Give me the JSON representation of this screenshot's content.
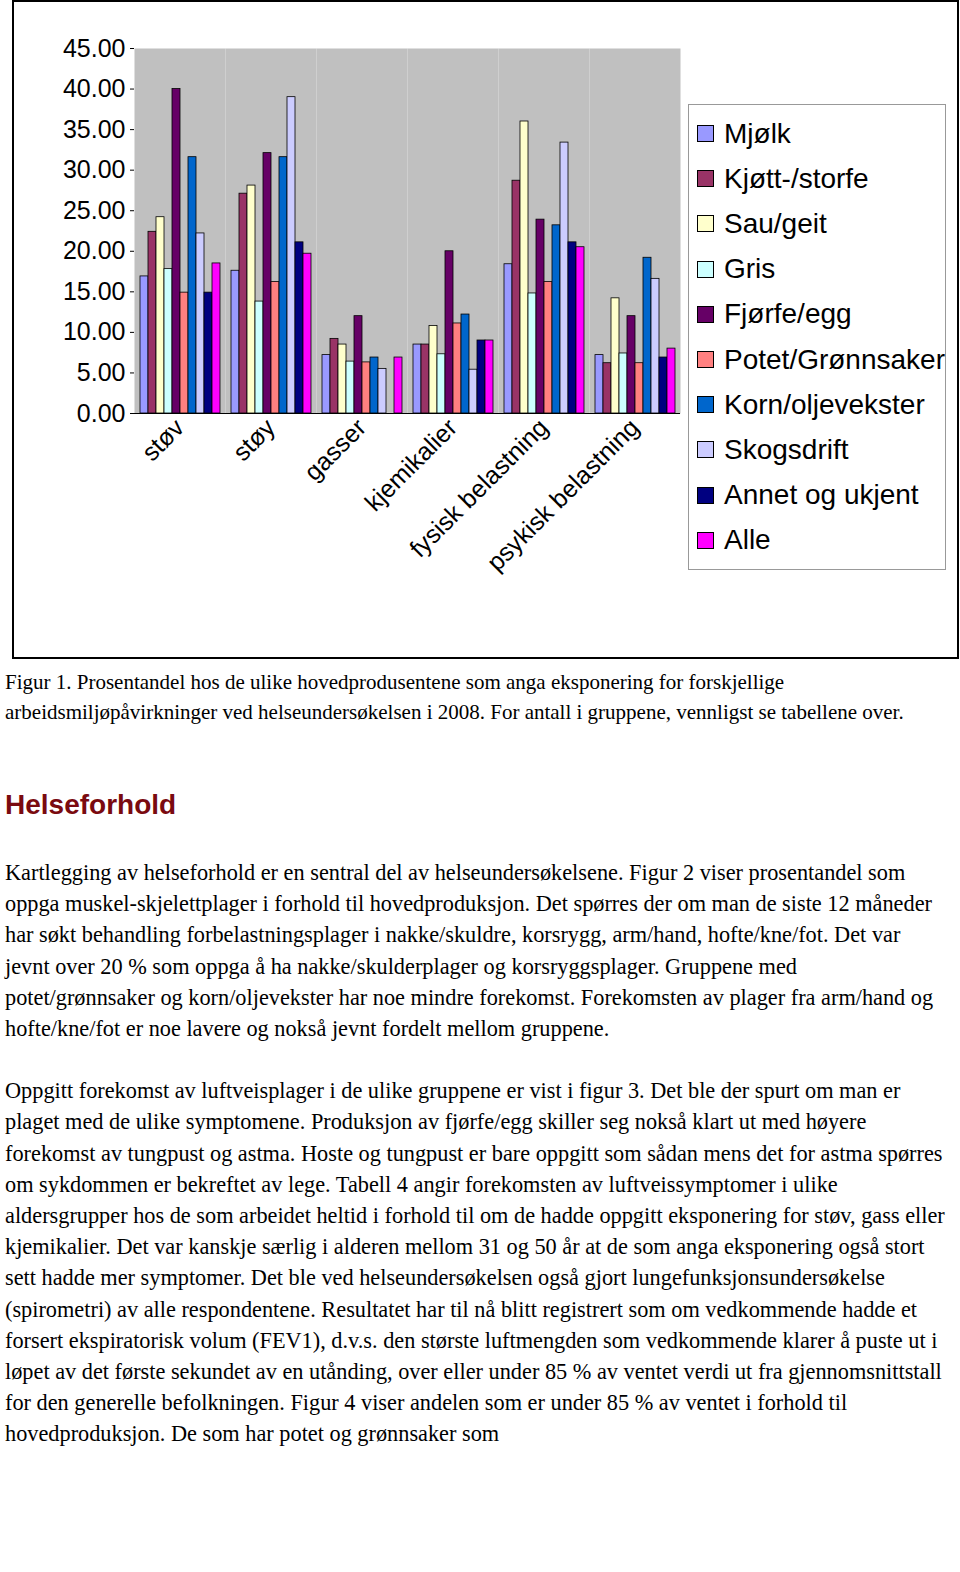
{
  "chart_data": {
    "type": "bar",
    "categories": [
      "støv",
      "støy",
      "gasser",
      "kjemikalier",
      "fysisk belastning",
      "psykisk belastning"
    ],
    "series": [
      {
        "name": "Mjølk",
        "color": "#9999ff",
        "values": [
          16.9,
          17.6,
          7.2,
          8.5,
          18.4,
          7.2
        ]
      },
      {
        "name": "Kjøtt-/storfe",
        "color": "#993366",
        "values": [
          22.4,
          27.1,
          9.2,
          8.5,
          28.7,
          6.2
        ]
      },
      {
        "name": "Sau/geit",
        "color": "#ffffcc",
        "values": [
          24.2,
          28.1,
          8.5,
          10.8,
          36.0,
          14.2
        ]
      },
      {
        "name": "Gris",
        "color": "#ccffff",
        "values": [
          17.8,
          13.8,
          6.4,
          7.3,
          14.8,
          7.4
        ]
      },
      {
        "name": "Fjørfe/egg",
        "color": "#660066",
        "values": [
          40.0,
          32.1,
          12.0,
          20.0,
          23.9,
          12.0
        ]
      },
      {
        "name": "Potet/Grønnsaker",
        "color": "#ff8080",
        "values": [
          14.9,
          16.2,
          6.3,
          11.1,
          16.2,
          6.2
        ]
      },
      {
        "name": "Korn/oljevekster",
        "color": "#0066cc",
        "values": [
          31.6,
          31.6,
          6.9,
          12.2,
          23.2,
          19.2
        ]
      },
      {
        "name": "Skogsdrift",
        "color": "#ccccff",
        "values": [
          22.2,
          39.0,
          5.5,
          5.4,
          33.4,
          16.6
        ]
      },
      {
        "name": "Annet og ukjent",
        "color": "#000080",
        "values": [
          14.9,
          21.1,
          0,
          9.0,
          21.1,
          6.9
        ]
      },
      {
        "name": "Alle",
        "color": "#ff00ff",
        "values": [
          18.5,
          19.7,
          6.9,
          9.0,
          20.5,
          8.0
        ]
      }
    ],
    "ylim": [
      0,
      45
    ],
    "yticks": [
      {
        "value": 0,
        "label": "0.00"
      },
      {
        "value": 5,
        "label": "5.00"
      },
      {
        "value": 10,
        "label": "10.00"
      },
      {
        "value": 15,
        "label": "15.00"
      },
      {
        "value": 20,
        "label": "20.00"
      },
      {
        "value": 25,
        "label": "25.00"
      },
      {
        "value": 30,
        "label": "30.00"
      },
      {
        "value": 35,
        "label": "35.00"
      },
      {
        "value": 40,
        "label": "40.00"
      },
      {
        "value": 45,
        "label": "45.00"
      }
    ],
    "legend": "right",
    "grid": false
  },
  "caption": "Figur 1. Prosentandel hos de ulike hovedprodusentene som anga eksponering for forskjellige arbeidsmiljøpåvirkninger ved helseundersøkelsen i 2008. For antall i gruppene, vennligst se tabellene over.",
  "heading": "Helseforhold",
  "paragraphs": [
    "Kartlegging av helseforhold er en sentral del av helseundersøkelsene. Figur 2 viser prosentandel som oppga muskel-skjelettplager i forhold til hovedproduksjon. Det spørres der om man de siste 12 måneder har søkt behandling forbelastningsplager i nakke/skuldre, korsrygg, arm/hand, hofte/kne/fot. Det var jevnt over 20 % som oppga å ha nakke/skulderplager og korsryggsplager. Gruppene med potet/grønnsaker og korn/oljevekster har noe mindre forekomst. Forekomsten av plager fra arm/hand og hofte/kne/fot er noe lavere og nokså jevnt fordelt mellom gruppene.",
    "Oppgitt forekomst av luftveisplager i de ulike gruppene er vist i figur 3. Det ble der spurt om man er plaget med de ulike symptomene. Produksjon av fjørfe/egg skiller seg nokså klart ut med høyere forekomst av tungpust og astma. Hoste og tungpust er bare oppgitt som sådan mens det for astma spørres om sykdommen er bekreftet av lege. Tabell 4 angir forekomsten av luftveissymptomer i ulike aldersgrupper hos de som arbeidet heltid i forhold til om de hadde oppgitt eksponering for støv, gass eller kjemikalier. Det var kanskje særlig i alderen mellom 31 og 50 år at de som anga eksponering også stort sett hadde mer symptomer. Det ble ved helseundersøkelsen også gjort lungefunksjonsundersøkelse (spirometri) av alle respondentene. Resultatet har til nå blitt registrert som om vedkommende hadde et forsert ekspiratorisk volum (FEV1), d.v.s. den største luftmengden som vedkommende klarer å puste ut i løpet av det første sekundet av en utånding, over eller under 85 % av ventet verdi ut fra gjennomsnittstall for den generelle befolkningen. Figur 4 viser andelen som er under 85 % av ventet i forhold til hovedproduksjon. De som har potet og grønnsaker som"
  ]
}
